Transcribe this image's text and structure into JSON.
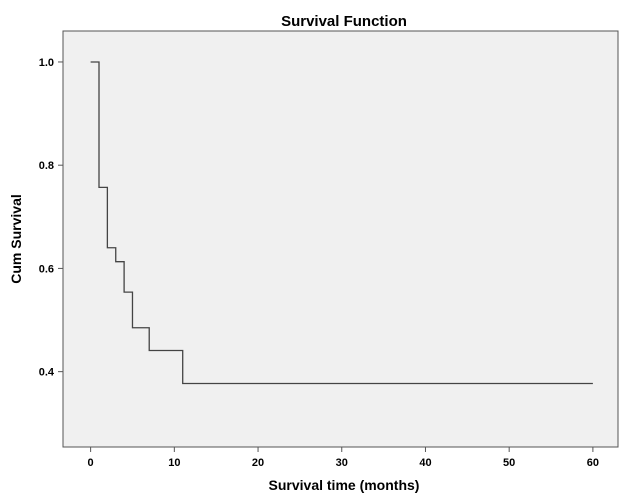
{
  "chart_data": {
    "type": "line",
    "title": "Survival Function",
    "xlabel": "Survival time (months)",
    "ylabel": "Cum Survival",
    "xlim": [
      -3.3,
      63
    ],
    "ylim": [
      0.254,
      1.06
    ],
    "xticks": [
      0,
      10,
      20,
      30,
      40,
      50,
      60
    ],
    "xtick_labels": [
      "0",
      "10",
      "20",
      "30",
      "40",
      "50",
      "60"
    ],
    "yticks": [
      0.4,
      0.6,
      0.8,
      1.0
    ],
    "ytick_labels": [
      "0.4",
      "0.6",
      "0.8",
      "1.0"
    ],
    "grid": false,
    "background_color": "#f0f0f0",
    "line_color": "#444444",
    "series": [
      {
        "step": true,
        "x": [
          0,
          1,
          2,
          3,
          4,
          5,
          7,
          11,
          60
        ],
        "y": [
          1.0,
          0.757,
          0.64,
          0.613,
          0.554,
          0.485,
          0.441,
          0.377,
          0.377
        ]
      }
    ]
  }
}
